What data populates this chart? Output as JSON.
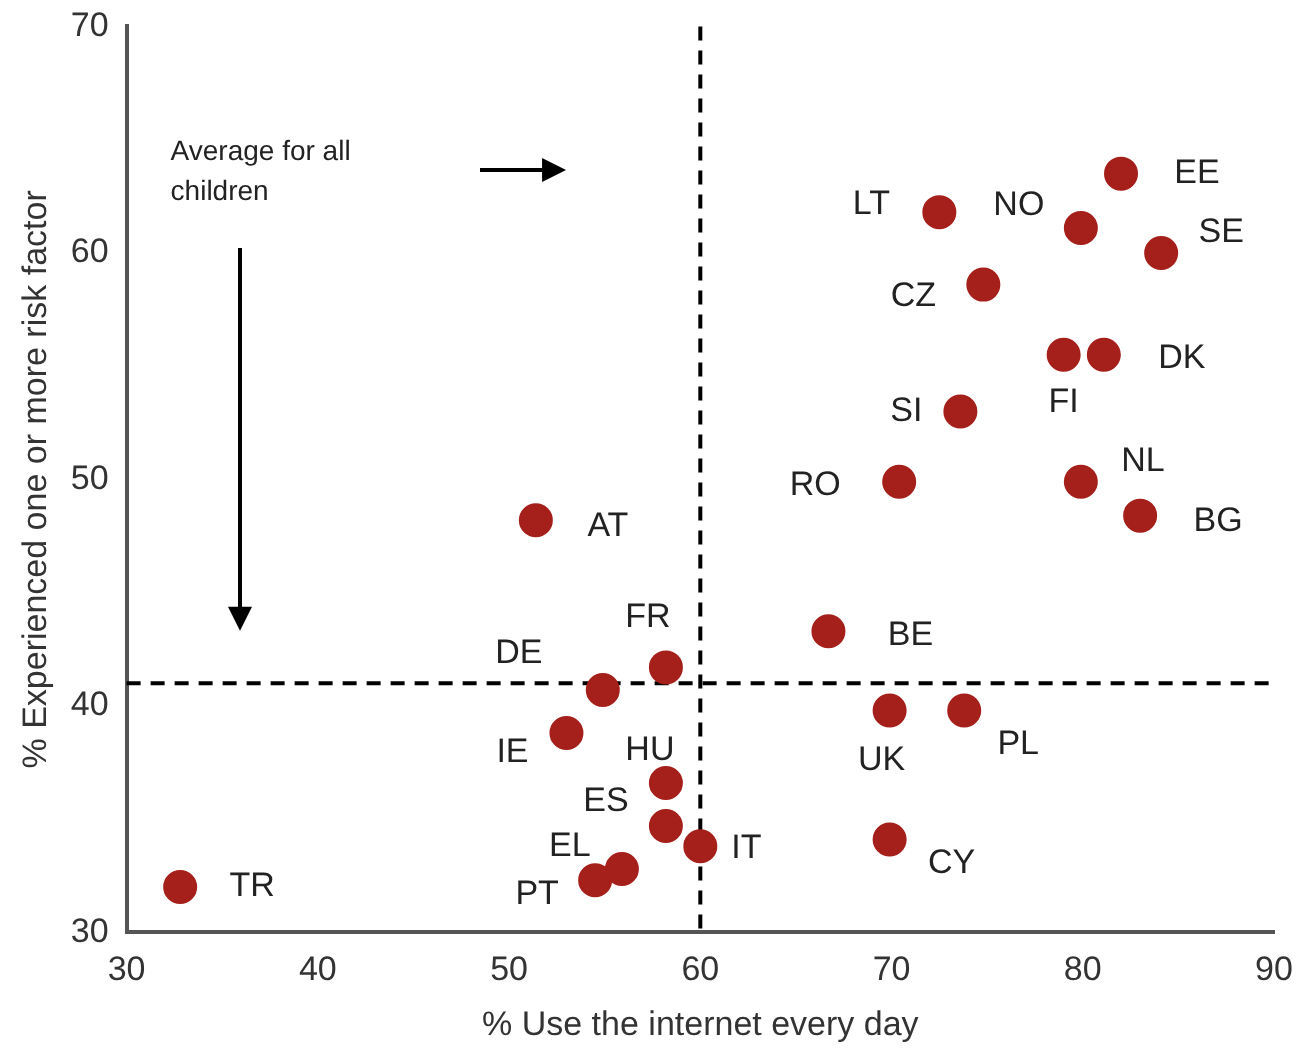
{
  "chart_data": {
    "type": "scatter",
    "xlabel": "% Use the internet every day",
    "ylabel": "% Experienced one or more risk factor",
    "x": [
      82.0,
      79.9,
      84.1,
      72.5,
      74.8,
      81.1,
      79.0,
      73.6,
      79.9,
      70.4,
      83.0,
      51.4,
      66.7,
      58.2,
      54.9,
      69.9,
      73.8,
      53.0,
      58.2,
      58.2,
      60.0,
      69.9,
      55.9,
      54.5,
      32.8
    ],
    "values": [
      63.5,
      61.1,
      60.0,
      61.8,
      58.6,
      55.5,
      55.5,
      53.0,
      49.9,
      49.9,
      48.4,
      48.2,
      43.3,
      41.7,
      40.7,
      39.8,
      39.8,
      38.8,
      36.6,
      34.7,
      33.8,
      34.1,
      32.8,
      32.3,
      32.0
    ],
    "color": "#a5201b",
    "marker": "circle",
    "grid": false,
    "xlim": [
      30,
      90
    ],
    "xticks": [
      30,
      40,
      50,
      60,
      70,
      80,
      90
    ],
    "ylim": [
      30,
      70
    ],
    "yticks": [
      30,
      40,
      50,
      60,
      70
    ],
    "ref_lines": [
      {
        "axis": "x",
        "value": 60,
        "line_style": "dashed",
        "color": "#000000"
      },
      {
        "axis": "y",
        "value": 41,
        "line_style": "dashed",
        "color": "#000000"
      }
    ],
    "annotations": [
      "Average for all children",
      {
        "text": "EE",
        "x": 82.0,
        "y": 63.5
      },
      {
        "text": "NO",
        "x": 79.9,
        "y": 61.1
      },
      {
        "text": "SE",
        "x": 84.1,
        "y": 60.0
      },
      {
        "text": "LT",
        "x": 72.5,
        "y": 61.8
      },
      {
        "text": "CZ",
        "x": 74.8,
        "y": 58.6
      },
      {
        "text": "DK",
        "x": 81.1,
        "y": 55.5
      },
      {
        "text": "FI",
        "x": 79.0,
        "y": 55.5
      },
      {
        "text": "SI",
        "x": 73.6,
        "y": 53.0
      },
      {
        "text": "NL",
        "x": 79.9,
        "y": 49.9
      },
      {
        "text": "RO",
        "x": 70.4,
        "y": 49.9
      },
      {
        "text": "BG",
        "x": 83.0,
        "y": 48.4
      },
      {
        "text": "AT",
        "x": 51.4,
        "y": 48.2
      },
      {
        "text": "BE",
        "x": 66.7,
        "y": 43.3
      },
      {
        "text": "FR",
        "x": 58.2,
        "y": 41.7
      },
      {
        "text": "DE",
        "x": 54.9,
        "y": 40.7
      },
      {
        "text": "UK",
        "x": 69.9,
        "y": 39.8
      },
      {
        "text": "PL",
        "x": 73.8,
        "y": 39.8
      },
      {
        "text": "IE",
        "x": 53.0,
        "y": 38.8
      },
      {
        "text": "HU",
        "x": 58.2,
        "y": 36.6
      },
      {
        "text": "ES",
        "x": 58.2,
        "y": 34.7
      },
      {
        "text": "IT",
        "x": 60.0,
        "y": 33.8
      },
      {
        "text": "CY",
        "x": 69.9,
        "y": 34.1
      },
      {
        "text": "EL",
        "x": 55.9,
        "y": 32.8
      },
      {
        "text": "PT",
        "x": 54.5,
        "y": 32.3
      },
      {
        "text": "TR",
        "x": 32.8,
        "y": 32.0
      }
    ]
  }
}
